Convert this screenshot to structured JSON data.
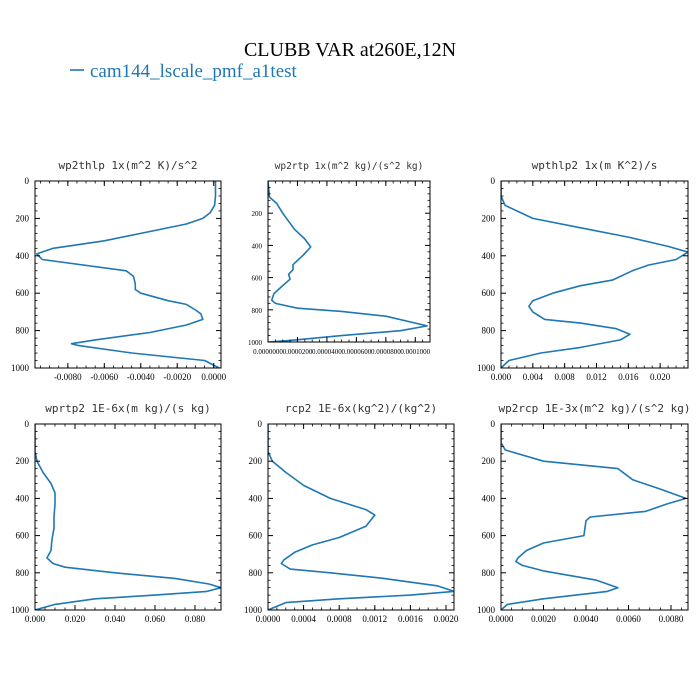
{
  "figure": {
    "title": "CLUBB VAR at260E,12N",
    "legend_label": "cam144_lscale_pmf_a1test",
    "legend_color": "#1f77b4"
  },
  "chart_data": [
    {
      "type": "line",
      "title": "wp2thlp   1x(m^2 K)/s^2",
      "xlim": [
        -0.0098,
        0.0004
      ],
      "ylim": [
        1000,
        0
      ],
      "xticks": [
        -0.008,
        -0.006,
        -0.004,
        -0.002,
        0.0
      ],
      "xtick_labels": [
        "-0.0080",
        "-0.0060",
        "-0.0040",
        "-0.0020",
        "0.0000"
      ],
      "yticks": [
        0,
        200,
        400,
        600,
        800,
        1000
      ],
      "ytick_labels": [
        "0",
        "200",
        "400",
        "600",
        "800",
        "1000"
      ],
      "series": [
        {
          "x": [
            0.0001,
            0.0001,
            5e-05,
            -0.0002,
            -0.0006,
            -0.0015,
            -0.0035,
            -0.006,
            -0.0088,
            -0.0097,
            -0.0094,
            -0.0048,
            -0.0044,
            -0.0043,
            -0.0043,
            -0.004,
            -0.0025,
            -0.0015,
            -0.001,
            -0.0007,
            -0.0006,
            -0.0015,
            -0.0035,
            -0.0065,
            -0.0078,
            -0.0074,
            -0.0045,
            -0.0005,
            0.0003
          ],
          "y": [
            0,
            80,
            130,
            170,
            200,
            230,
            270,
            320,
            360,
            390,
            420,
            480,
            510,
            550,
            580,
            600,
            640,
            660,
            690,
            710,
            740,
            770,
            810,
            850,
            870,
            880,
            920,
            960,
            1000
          ]
        }
      ]
    },
    {
      "type": "line",
      "title": "wp2rtp   1x(m^2 kg)/(s^2 kg)",
      "xlim": [
        0,
        0.00011
      ],
      "ylim": [
        1000,
        0
      ],
      "xticks": [
        0,
        2e-05,
        4e-05,
        6e-05,
        8e-05,
        0.0001
      ],
      "xtick_labels": [
        "0.0000000",
        "0.0000200",
        "0.0000400",
        "0.0000600",
        "0.0000800",
        "0.0001000"
      ],
      "yticks": [
        200,
        400,
        600,
        800,
        1000
      ],
      "ytick_labels": [
        "200",
        "400",
        "600",
        "800",
        "1000"
      ],
      "series": [
        {
          "x": [
            0.0,
            1e-06,
            6e-06,
            1e-05,
            1.8e-05,
            2.5e-05,
            2.9e-05,
            2.4e-05,
            1.7e-05,
            1.7e-05,
            1.4e-05,
            1.5e-05,
            1e-05,
            4e-06,
            2.5e-06,
            5e-06,
            2e-05,
            5e-05,
            8e-05,
            0.000108,
            9e-05,
            5e-05,
            1.5e-05,
            0.0
          ],
          "y": [
            0,
            100,
            140,
            200,
            300,
            360,
            410,
            460,
            520,
            550,
            580,
            610,
            650,
            700,
            740,
            760,
            790,
            810,
            840,
            900,
            930,
            960,
            990,
            1000
          ]
        }
      ]
    },
    {
      "type": "line",
      "title": "wpthlp2   1x(m K^2)/s",
      "xlim": [
        0,
        0.0235
      ],
      "ylim": [
        1000,
        0
      ],
      "xticks": [
        0,
        0.004,
        0.008,
        0.012,
        0.016,
        0.02
      ],
      "xtick_labels": [
        "0.000",
        "0.004",
        "0.008",
        "0.012",
        "0.016",
        "0.020"
      ],
      "yticks": [
        0,
        200,
        400,
        600,
        800,
        1000
      ],
      "ytick_labels": [
        "0",
        "200",
        "400",
        "600",
        "800",
        "1000"
      ],
      "series": [
        {
          "x": [
            0.0,
            0.0,
            0.0005,
            0.004,
            0.01,
            0.016,
            0.021,
            0.0235,
            0.022,
            0.0185,
            0.0165,
            0.014,
            0.01,
            0.0065,
            0.004,
            0.0035,
            0.004,
            0.0055,
            0.01,
            0.0145,
            0.0162,
            0.015,
            0.01,
            0.005,
            0.001,
            0.0
          ],
          "y": [
            0,
            80,
            130,
            200,
            250,
            300,
            350,
            380,
            420,
            450,
            480,
            530,
            560,
            600,
            640,
            670,
            700,
            740,
            760,
            790,
            820,
            850,
            890,
            920,
            960,
            1000
          ]
        }
      ]
    },
    {
      "type": "line",
      "title": "wprtp2   1E-6x(m kg)/(s kg)",
      "xlim": [
        0,
        0.093
      ],
      "ylim": [
        1000,
        0
      ],
      "xticks": [
        0,
        0.02,
        0.04,
        0.06,
        0.08
      ],
      "xtick_labels": [
        "0.000",
        "0.020",
        "0.040",
        "0.060",
        "0.080"
      ],
      "yticks": [
        0,
        200,
        400,
        600,
        800,
        1000
      ],
      "ytick_labels": [
        "0",
        "200",
        "400",
        "600",
        "800",
        "1000"
      ],
      "series": [
        {
          "x": [
            0.0,
            0.0,
            0.001,
            0.004,
            0.008,
            0.01,
            0.01,
            0.0095,
            0.0095,
            0.0085,
            0.008,
            0.006,
            0.009,
            0.015,
            0.04,
            0.07,
            0.087,
            0.093,
            0.086,
            0.06,
            0.03,
            0.01,
            0.0
          ],
          "y": [
            0,
            150,
            200,
            260,
            320,
            370,
            430,
            500,
            560,
            620,
            680,
            720,
            750,
            770,
            800,
            830,
            860,
            880,
            900,
            920,
            940,
            970,
            1000
          ]
        }
      ]
    },
    {
      "type": "line",
      "title": "rcp2   1E-6x(kg^2)/(kg^2)",
      "xlim": [
        0,
        0.00209
      ],
      "ylim": [
        1000,
        0
      ],
      "xticks": [
        0,
        0.0004,
        0.0008,
        0.0012,
        0.0016,
        0.002
      ],
      "xtick_labels": [
        "0.0000",
        "0.0004",
        "0.0008",
        "0.0012",
        "0.0016",
        "0.0020"
      ],
      "yticks": [
        0,
        200,
        400,
        600,
        800,
        1000
      ],
      "ytick_labels": [
        "0",
        "200",
        "400",
        "600",
        "800",
        "1000"
      ],
      "series": [
        {
          "x": [
            0.0,
            0.0,
            5e-05,
            0.0002,
            0.0004,
            0.0007,
            0.0011,
            0.0012,
            0.0011,
            0.0008,
            0.0005,
            0.0003,
            0.00018,
            0.00015,
            0.00025,
            0.0007,
            0.0013,
            0.0019,
            0.00209,
            0.0016,
            0.0008,
            0.0002,
            0.0
          ],
          "y": [
            0,
            150,
            200,
            260,
            330,
            400,
            460,
            490,
            550,
            610,
            650,
            690,
            730,
            750,
            780,
            800,
            830,
            870,
            900,
            920,
            940,
            960,
            1000
          ]
        }
      ]
    },
    {
      "type": "line",
      "title": "wp2rcp   1E-3x(m^2 kg)/(s^2 kg)",
      "xlim": [
        0,
        0.0088
      ],
      "ylim": [
        1000,
        0
      ],
      "xticks": [
        0,
        0.002,
        0.004,
        0.006,
        0.008
      ],
      "xtick_labels": [
        "0.0000",
        "0.0020",
        "0.0040",
        "0.0060",
        "0.0080"
      ],
      "yticks": [
        0,
        200,
        400,
        600,
        800,
        1000
      ],
      "ytick_labels": [
        "0",
        "200",
        "400",
        "600",
        "800",
        "1000"
      ],
      "series": [
        {
          "x": [
            0.0,
            0.0,
            0.0002,
            0.002,
            0.0055,
            0.0062,
            0.0075,
            0.0087,
            0.0078,
            0.0068,
            0.0042,
            0.004,
            0.0039,
            0.002,
            0.0012,
            0.0008,
            0.0007,
            0.001,
            0.002,
            0.0045,
            0.0055,
            0.005,
            0.002,
            0.0003,
            0.0
          ],
          "y": [
            0,
            100,
            140,
            200,
            240,
            300,
            350,
            400,
            430,
            470,
            500,
            520,
            600,
            640,
            680,
            720,
            740,
            760,
            790,
            840,
            880,
            900,
            940,
            970,
            1000
          ]
        }
      ]
    }
  ]
}
